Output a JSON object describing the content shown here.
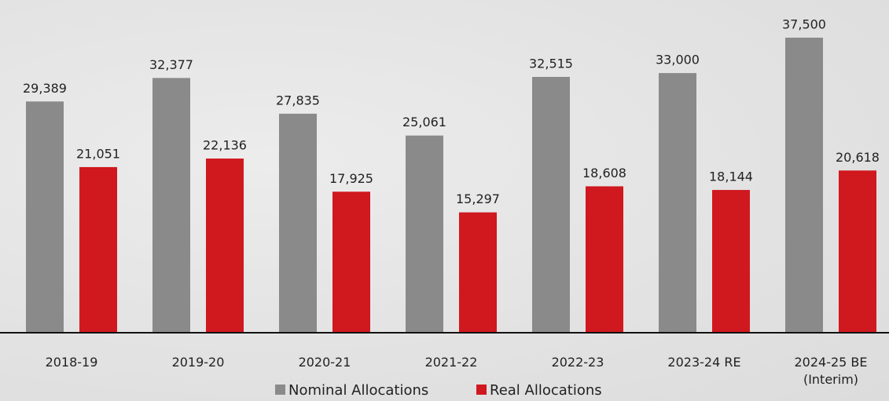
{
  "chart_data": {
    "type": "bar",
    "categories": [
      "2018-19",
      "2019-20",
      "2020-21",
      "2021-22",
      "2022-23",
      "2023-24 RE",
      "2024-25 BE\n(Interim)"
    ],
    "series": [
      {
        "name": "Nominal Allocations",
        "color": "#8a8a8a",
        "values": [
          29389,
          32377,
          27835,
          25061,
          32515,
          33000,
          37500
        ],
        "value_labels": [
          "29,389",
          "32,377",
          "27,835",
          "25,061",
          "32,515",
          "33,000",
          "37,500"
        ]
      },
      {
        "name": "Real Allocations",
        "color": "#d0181f",
        "values": [
          21051,
          22136,
          17925,
          15297,
          18608,
          18144,
          20618
        ],
        "value_labels": [
          "21,051",
          "22,136",
          "17,925",
          "15,297",
          "18,608",
          "18,144",
          "20,618"
        ]
      }
    ],
    "ylim": [
      0,
      37500
    ]
  }
}
